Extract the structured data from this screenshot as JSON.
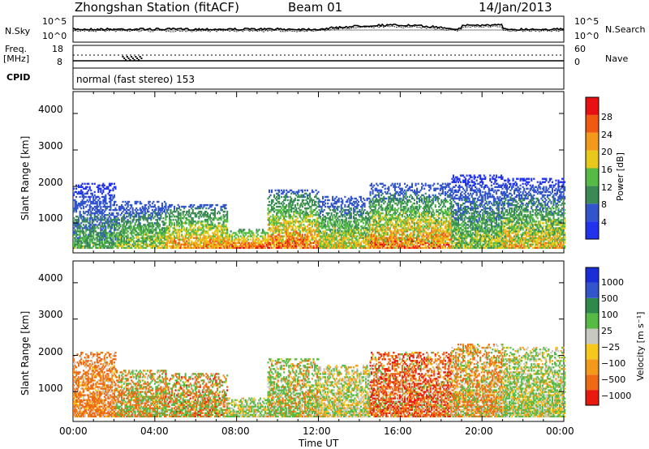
{
  "header": {
    "station": "Zhongshan Station (fitACF)",
    "beam": "Beam 01",
    "date": "14/Jan/2013"
  },
  "aux_panels": {
    "nsky_label": "N.Sky",
    "nsky_ticks": [
      "10^5",
      "10^0"
    ],
    "nsearch_label": "N.Search",
    "nsearch_ticks": [
      "10^5",
      "10^0"
    ],
    "freq_label": "Freq.",
    "freq_unit": "[MHz]",
    "freq_ticks": [
      "18",
      "8"
    ],
    "nave_label": "Nave",
    "nave_ticks": [
      "60",
      "0"
    ],
    "cpid_label": "CPID",
    "cpid_value": "normal (fast stereo) 153"
  },
  "colors": {
    "power_scale": [
      "#2233ee",
      "#3355cc",
      "#3a8a55",
      "#55bb44",
      "#e8c81a",
      "#f39a1a",
      "#ef5a10",
      "#e81010"
    ],
    "velocity_scale": [
      "#1a2ed8",
      "#3355cc",
      "#2e8a4a",
      "#55bb44",
      "#c8c8c2",
      "#f7c81c",
      "#f39a1a",
      "#ef6a14",
      "#e81a10"
    ]
  },
  "chart_data": [
    {
      "type": "heatmap",
      "name": "power",
      "ylabel": "Slant Range [km]",
      "xlabel": "Time UT",
      "x_ticks": [
        "00:00",
        "04:00",
        "08:00",
        "12:00",
        "16:00",
        "20:00",
        "00:00"
      ],
      "y_ticks": [
        "1000",
        "2000",
        "3000",
        "4000"
      ],
      "ylim": [
        180,
        4600
      ],
      "xlim_hours": [
        0,
        24
      ],
      "colorbar_label": "Power [dB]",
      "colorbar_ticks": [
        "4",
        "8",
        "12",
        "16",
        "20",
        "24",
        "28"
      ],
      "colorbar_range": [
        0,
        30
      ],
      "scatter_regions": [
        {
          "t0": 0.0,
          "t1": 2.1,
          "r0": 300,
          "r1": 2100,
          "v0": 2,
          "v1": 16
        },
        {
          "t0": 2.1,
          "t1": 4.5,
          "r0": 300,
          "r1": 1600,
          "v0": 4,
          "v1": 20
        },
        {
          "t0": 4.5,
          "t1": 7.5,
          "r0": 300,
          "r1": 1500,
          "v0": 6,
          "v1": 28
        },
        {
          "t0": 7.5,
          "t1": 9.5,
          "r0": 300,
          "r1": 800,
          "v0": 10,
          "v1": 30
        },
        {
          "t0": 9.5,
          "t1": 12.0,
          "r0": 300,
          "r1": 1900,
          "v0": 6,
          "v1": 30
        },
        {
          "t0": 12.0,
          "t1": 14.5,
          "r0": 300,
          "r1": 1700,
          "v0": 4,
          "v1": 24
        },
        {
          "t0": 14.5,
          "t1": 18.5,
          "r0": 300,
          "r1": 2100,
          "v0": 4,
          "v1": 30
        },
        {
          "t0": 18.5,
          "t1": 21.0,
          "r0": 300,
          "r1": 2300,
          "v0": 2,
          "v1": 20
        },
        {
          "t0": 21.0,
          "t1": 24.0,
          "r0": 300,
          "r1": 2200,
          "v0": 2,
          "v1": 26
        }
      ]
    },
    {
      "type": "heatmap",
      "name": "velocity",
      "ylabel": "Slant Range [km]",
      "xlabel": "Time UT",
      "x_ticks": [
        "00:00",
        "04:00",
        "08:00",
        "12:00",
        "16:00",
        "20:00",
        "00:00"
      ],
      "y_ticks": [
        "1000",
        "2000",
        "3000",
        "4000"
      ],
      "ylim": [
        180,
        4600
      ],
      "xlim_hours": [
        0,
        24
      ],
      "colorbar_label": "Velocity [m s⁻¹]",
      "colorbar_ticks": [
        "1000",
        "500",
        "100",
        "25",
        "−25",
        "−100",
        "−500",
        "−1000"
      ],
      "colorbar_range": [
        -1000,
        1000
      ],
      "scatter_regions": [
        {
          "t0": 0.0,
          "t1": 2.1,
          "r0": 300,
          "r1": 2100,
          "v0": -500,
          "v1": 100
        },
        {
          "t0": 2.1,
          "t1": 4.5,
          "r0": 300,
          "r1": 1600,
          "v0": -500,
          "v1": 500
        },
        {
          "t0": 4.5,
          "t1": 7.5,
          "r0": 300,
          "r1": 1500,
          "v0": -600,
          "v1": 500
        },
        {
          "t0": 7.5,
          "t1": 9.5,
          "r0": 300,
          "r1": 800,
          "v0": -100,
          "v1": 300
        },
        {
          "t0": 9.5,
          "t1": 12.0,
          "r0": 300,
          "r1": 1900,
          "v0": -200,
          "v1": 400
        },
        {
          "t0": 12.0,
          "t1": 14.5,
          "r0": 300,
          "r1": 1700,
          "v0": -100,
          "v1": 200
        },
        {
          "t0": 14.5,
          "t1": 18.5,
          "r0": 300,
          "r1": 2100,
          "v0": -800,
          "v1": 200
        },
        {
          "t0": 18.5,
          "t1": 21.0,
          "r0": 300,
          "r1": 2300,
          "v0": -300,
          "v1": 200
        },
        {
          "t0": 21.0,
          "t1": 24.0,
          "r0": 300,
          "r1": 2200,
          "v0": -100,
          "v1": 300
        }
      ]
    }
  ]
}
